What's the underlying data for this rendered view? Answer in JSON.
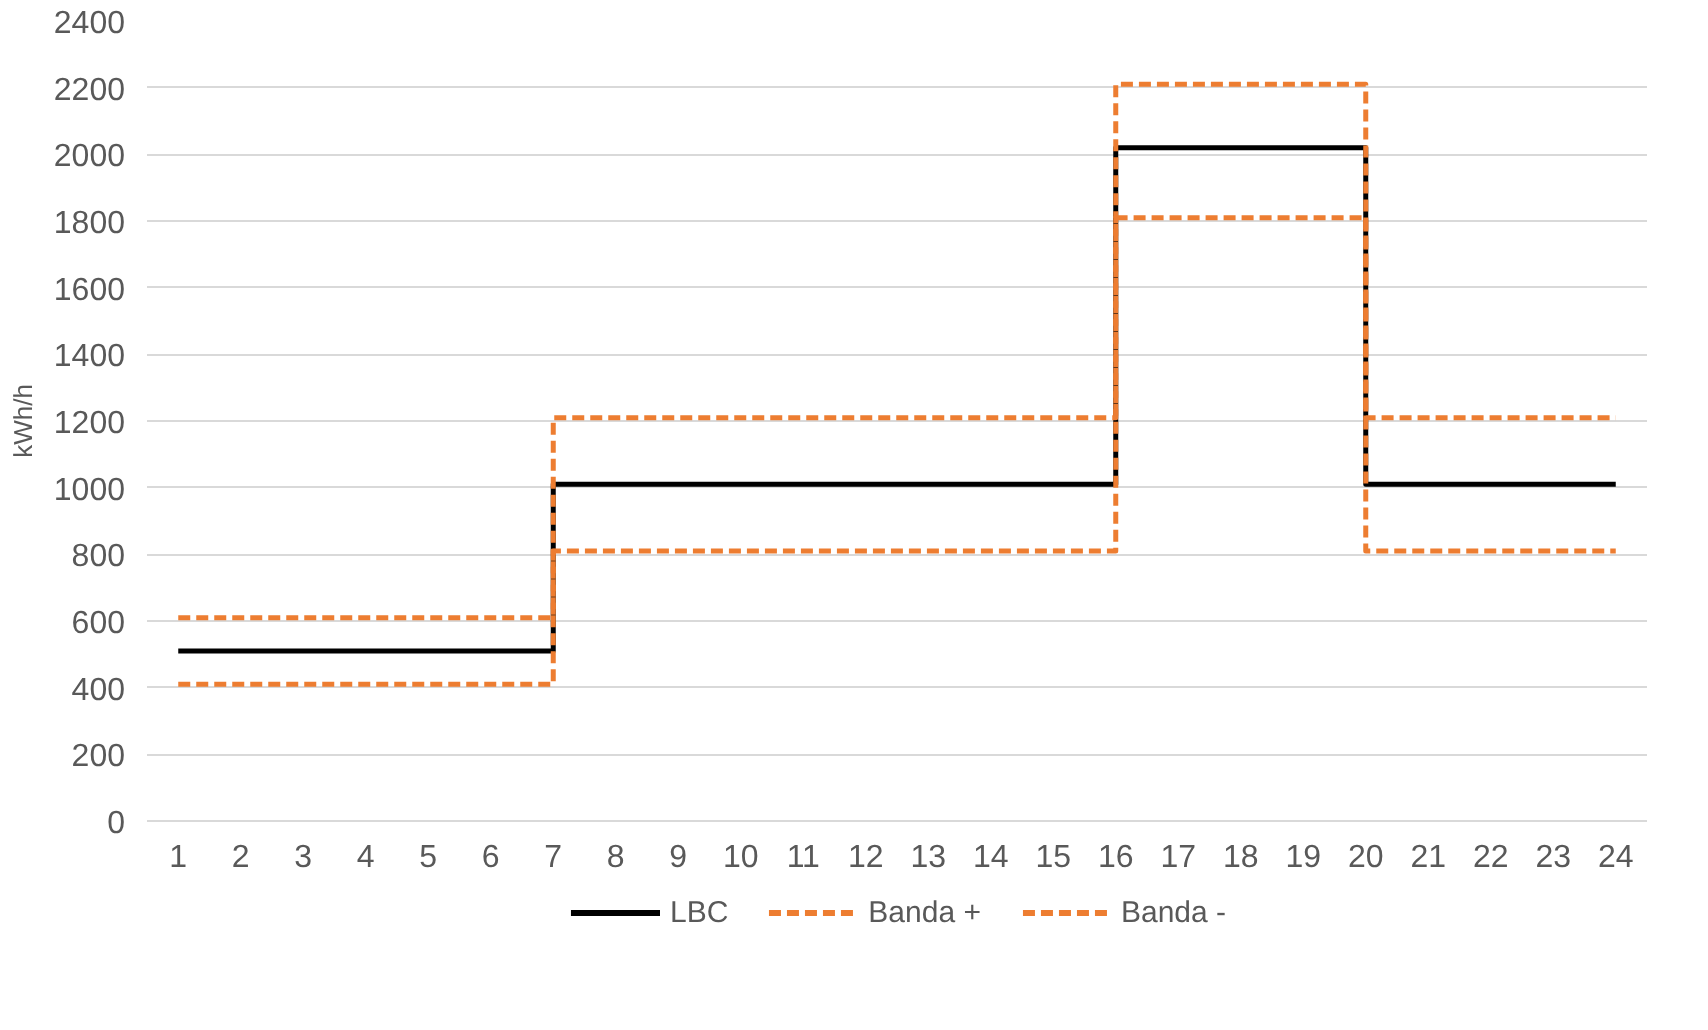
{
  "chart_data": {
    "type": "step",
    "ylabel": "kWh/h",
    "x": [
      1,
      2,
      3,
      4,
      5,
      6,
      7,
      8,
      9,
      10,
      11,
      12,
      13,
      14,
      15,
      16,
      17,
      18,
      19,
      20,
      21,
      22,
      23,
      24
    ],
    "xlim": [
      0.5,
      24.5
    ],
    "xticks": [
      1,
      2,
      3,
      4,
      5,
      6,
      7,
      8,
      9,
      10,
      11,
      12,
      13,
      14,
      15,
      16,
      17,
      18,
      19,
      20,
      21,
      22,
      23,
      24
    ],
    "ylim": [
      0,
      2400
    ],
    "yticks": [
      0,
      200,
      400,
      600,
      800,
      1000,
      1200,
      1400,
      1600,
      1800,
      2000,
      2200,
      2400
    ],
    "grid": "y",
    "legend": "bottom",
    "marker": "none",
    "series": [
      {
        "name": "LBC",
        "color": "#000000",
        "line_style": "solid",
        "values": [
          510,
          510,
          510,
          510,
          510,
          510,
          1010,
          1010,
          1010,
          1010,
          1010,
          1010,
          1010,
          1010,
          1010,
          2020,
          2020,
          2020,
          2020,
          1010,
          1010,
          1010,
          1010,
          1010
        ]
      },
      {
        "name": "Banda +",
        "color": "#ed7d31",
        "line_style": "dashed",
        "values": [
          610,
          610,
          610,
          610,
          610,
          610,
          1210,
          1210,
          1210,
          1210,
          1210,
          1210,
          1210,
          1210,
          1210,
          2210,
          2210,
          2210,
          2210,
          1210,
          1210,
          1210,
          1210,
          1210
        ]
      },
      {
        "name": "Banda -",
        "color": "#ed7d31",
        "line_style": "dashed",
        "values": [
          410,
          410,
          410,
          410,
          410,
          410,
          810,
          810,
          810,
          810,
          810,
          810,
          810,
          810,
          810,
          1810,
          1810,
          1810,
          1810,
          810,
          810,
          810,
          810,
          810
        ]
      }
    ]
  }
}
